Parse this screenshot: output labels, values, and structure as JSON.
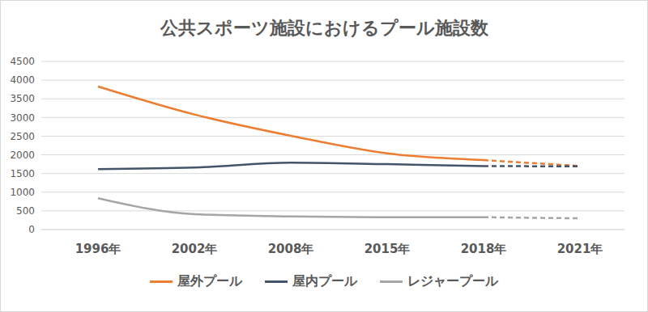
{
  "chart_data": {
    "type": "line",
    "title": "公共スポーツ施設におけるプール施設数",
    "categories": [
      "1996年",
      "2002年",
      "2008年",
      "2015年",
      "2018年",
      "2021年"
    ],
    "series": [
      {
        "name": "屋外プール",
        "color": "#ED7D31",
        "values": [
          3830,
          3080,
          2510,
          2040,
          1860,
          1700
        ]
      },
      {
        "name": "屋内プール",
        "color": "#44546A",
        "values": [
          1619,
          1660,
          1790,
          1750,
          1700,
          1690
        ]
      },
      {
        "name": "レジャープール",
        "color": "#A5A5A5",
        "values": [
          840,
          410,
          350,
          330,
          330,
          300
        ]
      }
    ],
    "ylim": [
      0,
      4500
    ],
    "yticks": [
      0,
      500,
      1000,
      1500,
      2000,
      2500,
      3000,
      3500,
      4000,
      4500
    ],
    "grid": true,
    "legend": "bottom"
  }
}
